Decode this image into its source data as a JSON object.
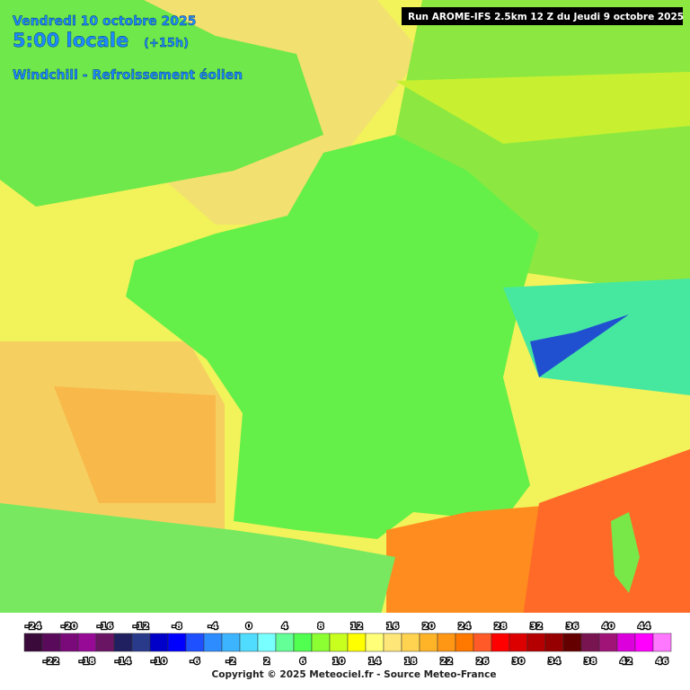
{
  "header": {
    "date": "Vendredi 10 octobre 2025",
    "time": "5:00 locale",
    "lead": "(+15h)",
    "product": "Windchill - Refroissement éolien"
  },
  "run": "Run AROME-IFS 2.5km 12 Z du Jeudi 9 octobre 2025",
  "legend": {
    "values": [
      -24,
      -22,
      -20,
      -18,
      -16,
      -14,
      -12,
      -10,
      -8,
      -6,
      -4,
      -2,
      0,
      2,
      4,
      6,
      8,
      10,
      12,
      14,
      16,
      18,
      20,
      22,
      24,
      26,
      28,
      30,
      32,
      34,
      36,
      38,
      40,
      42,
      44,
      46
    ],
    "colors": [
      "#3a0a3a",
      "#5a0a5a",
      "#7a0a7a",
      "#960a96",
      "#6a1464",
      "#202060",
      "#2a3a8a",
      "#0000c8",
      "#0000ff",
      "#1e50ff",
      "#2d8cff",
      "#3cb4ff",
      "#50dcff",
      "#78ffff",
      "#64ff96",
      "#50ff50",
      "#8cff32",
      "#c8ff1e",
      "#ffff00",
      "#ffff78",
      "#ffe678",
      "#ffd250",
      "#ffb428",
      "#ff9614",
      "#ff7800",
      "#ff5a28",
      "#ff0000",
      "#dc0000",
      "#b40000",
      "#960000",
      "#640000",
      "#781450",
      "#a01478",
      "#dc00dc",
      "#ff00ff",
      "#ff78ff"
    ]
  },
  "copyright": "Copyright © 2025 Meteociel.fr - Source Meteo-France"
}
